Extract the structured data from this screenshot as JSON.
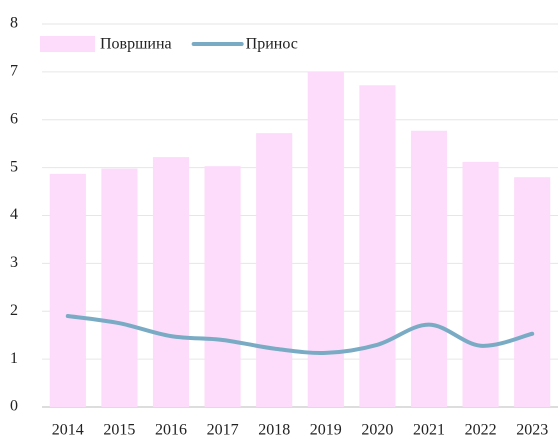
{
  "chart_data": {
    "type": "bar",
    "categories": [
      "2014",
      "2015",
      "2016",
      "2017",
      "2018",
      "2019",
      "2020",
      "2021",
      "2022",
      "2023"
    ],
    "series": [
      {
        "name": "Површина",
        "type": "bar",
        "color": "#fcdcfa",
        "values": [
          4.87,
          4.98,
          5.22,
          5.03,
          5.72,
          7.0,
          6.72,
          5.77,
          5.12,
          4.8
        ]
      },
      {
        "name": "Принос",
        "type": "line",
        "color": "#7aabc4",
        "values": [
          1.9,
          1.75,
          1.48,
          1.4,
          1.22,
          1.13,
          1.3,
          1.72,
          1.28,
          1.53
        ]
      }
    ],
    "ylim": [
      0,
      8
    ],
    "yticks": [
      0,
      1,
      2,
      3,
      4,
      5,
      6,
      7,
      8
    ],
    "grid": true,
    "legend": "top-left"
  }
}
